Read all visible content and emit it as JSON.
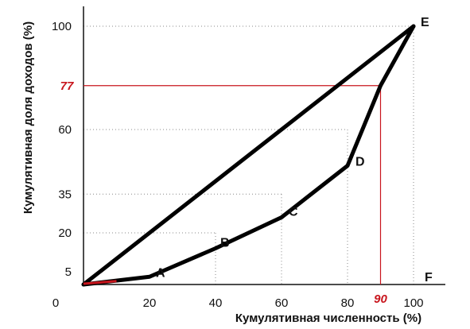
{
  "chart_data": {
    "type": "line",
    "xlabel": "Кумулятивная численность (%)",
    "ylabel": "Кумулятивная доля доходов (%)",
    "xlim": [
      0,
      100
    ],
    "ylim": [
      0,
      100
    ],
    "x_ticks": [
      0,
      20,
      40,
      60,
      80,
      100
    ],
    "y_ticks": [
      5,
      20,
      35,
      60,
      100
    ],
    "origin_label": "0",
    "grid": "dotted guide lines at selected points",
    "equality_line": [
      [
        0,
        0
      ],
      [
        100,
        100
      ]
    ],
    "lorenz_curve": [
      [
        0,
        0
      ],
      [
        20,
        3
      ],
      [
        40,
        14
      ],
      [
        60,
        26
      ],
      [
        80,
        46
      ],
      [
        90,
        77
      ],
      [
        100,
        100
      ]
    ],
    "points": [
      {
        "label": "A",
        "x": 20,
        "y": 3
      },
      {
        "label": "B",
        "x": 40,
        "y": 14
      },
      {
        "label": "C",
        "x": 60,
        "y": 26
      },
      {
        "label": "D",
        "x": 80,
        "y": 46
      },
      {
        "label": "E",
        "x": 100,
        "y": 100
      },
      {
        "label": "F",
        "x": 100,
        "y": 0
      }
    ],
    "highlight": {
      "x": 90,
      "y": 77,
      "x_label": "90",
      "y_label": "77",
      "color": "#c8151d"
    },
    "line_color": "#000000",
    "accent_color": "#c8151d"
  }
}
